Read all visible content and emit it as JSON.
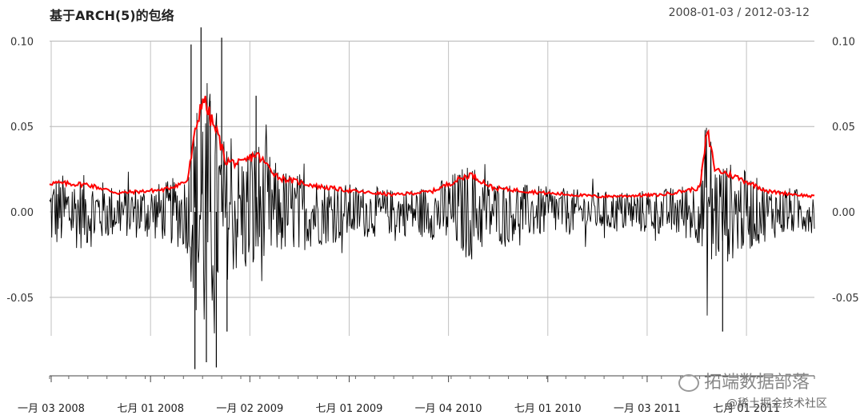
{
  "chart_data": {
    "type": "line",
    "title": "基于ARCH(5)的包络",
    "date_range": "2008-01-03 / 2012-03-12",
    "ylim": [
      -0.095,
      0.11
    ],
    "y_ticks": [
      -0.05,
      0.0,
      0.05,
      0.1
    ],
    "y_tick_labels": [
      "-0.05",
      "0.00",
      "0.05",
      "0.10"
    ],
    "x_ticks": [
      "一月 03 2008",
      "七月 01 2008",
      "一月 02 2009",
      "七月 01 2009",
      "一月 04 2010",
      "七月 01 2010",
      "一月 03 2011",
      "七月 01 2011"
    ],
    "grid": true,
    "series": [
      {
        "color": "#000000",
        "style": "spikes",
        "keypoints": [
          [
            0.0,
            0.0
          ],
          [
            0.08,
            0.035
          ],
          [
            0.18,
            -0.08
          ],
          [
            0.22,
            0.1
          ],
          [
            0.3,
            -0.05
          ],
          [
            0.4,
            0.02
          ],
          [
            0.55,
            -0.03
          ],
          [
            0.7,
            0.01
          ],
          [
            0.85,
            -0.07
          ],
          [
            0.92,
            0.03
          ],
          [
            1.0,
            0.0
          ]
        ]
      },
      {
        "color": "#ff0000",
        "style": "line",
        "keypoints": [
          [
            0.0,
            0.017
          ],
          [
            0.05,
            0.016
          ],
          [
            0.09,
            0.011
          ],
          [
            0.15,
            0.013
          ],
          [
            0.18,
            0.018
          ],
          [
            0.19,
            0.045
          ],
          [
            0.2,
            0.068
          ],
          [
            0.21,
            0.055
          ],
          [
            0.22,
            0.045
          ],
          [
            0.23,
            0.03
          ],
          [
            0.25,
            0.028
          ],
          [
            0.27,
            0.034
          ],
          [
            0.3,
            0.02
          ],
          [
            0.35,
            0.015
          ],
          [
            0.4,
            0.012
          ],
          [
            0.45,
            0.01
          ],
          [
            0.5,
            0.012
          ],
          [
            0.55,
            0.022
          ],
          [
            0.58,
            0.014
          ],
          [
            0.65,
            0.011
          ],
          [
            0.72,
            0.009
          ],
          [
            0.8,
            0.01
          ],
          [
            0.85,
            0.014
          ],
          [
            0.86,
            0.047
          ],
          [
            0.87,
            0.025
          ],
          [
            0.9,
            0.02
          ],
          [
            0.94,
            0.012
          ],
          [
            1.0,
            0.009
          ]
        ]
      }
    ]
  },
  "watermark": {
    "line1": "拓端数据部落",
    "line2": "@稀土掘金技术社区",
    "icon": "wechat-icon"
  }
}
